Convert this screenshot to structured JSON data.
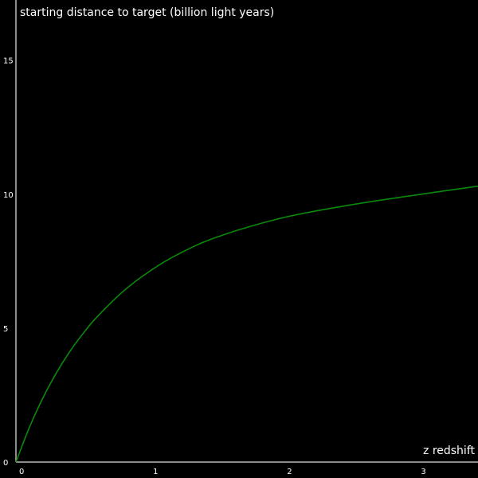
{
  "chart_data": {
    "type": "line",
    "title": "",
    "xlabel": "z redshift",
    "ylabel": "starting distance to target (billion light years)",
    "xlim": [
      0,
      3.45
    ],
    "ylim": [
      0,
      17.25
    ],
    "x_ticks": [
      0,
      1,
      2,
      3
    ],
    "y_ticks": [
      0,
      5,
      10,
      15
    ],
    "x_tick_labels": [
      "0",
      "1",
      "2",
      "3"
    ],
    "y_tick_labels": [
      "0",
      "5",
      "10",
      "15"
    ],
    "grid": false,
    "colors": {
      "background": "#000000",
      "axis": "#bbbbbb",
      "line": "#0a8a0a",
      "text": "#ffffff"
    },
    "series": [
      {
        "x": [
          0,
          0.1,
          0.2,
          0.3,
          0.4,
          0.5,
          0.6,
          0.8,
          1.0,
          1.2,
          1.5,
          2.0,
          2.5,
          3.0,
          3.45
        ],
        "values": [
          0,
          1.29,
          2.38,
          3.31,
          4.11,
          4.79,
          5.39,
          6.37,
          7.13,
          7.73,
          8.4,
          9.13,
          9.6,
          9.98,
          10.3
        ]
      }
    ]
  }
}
